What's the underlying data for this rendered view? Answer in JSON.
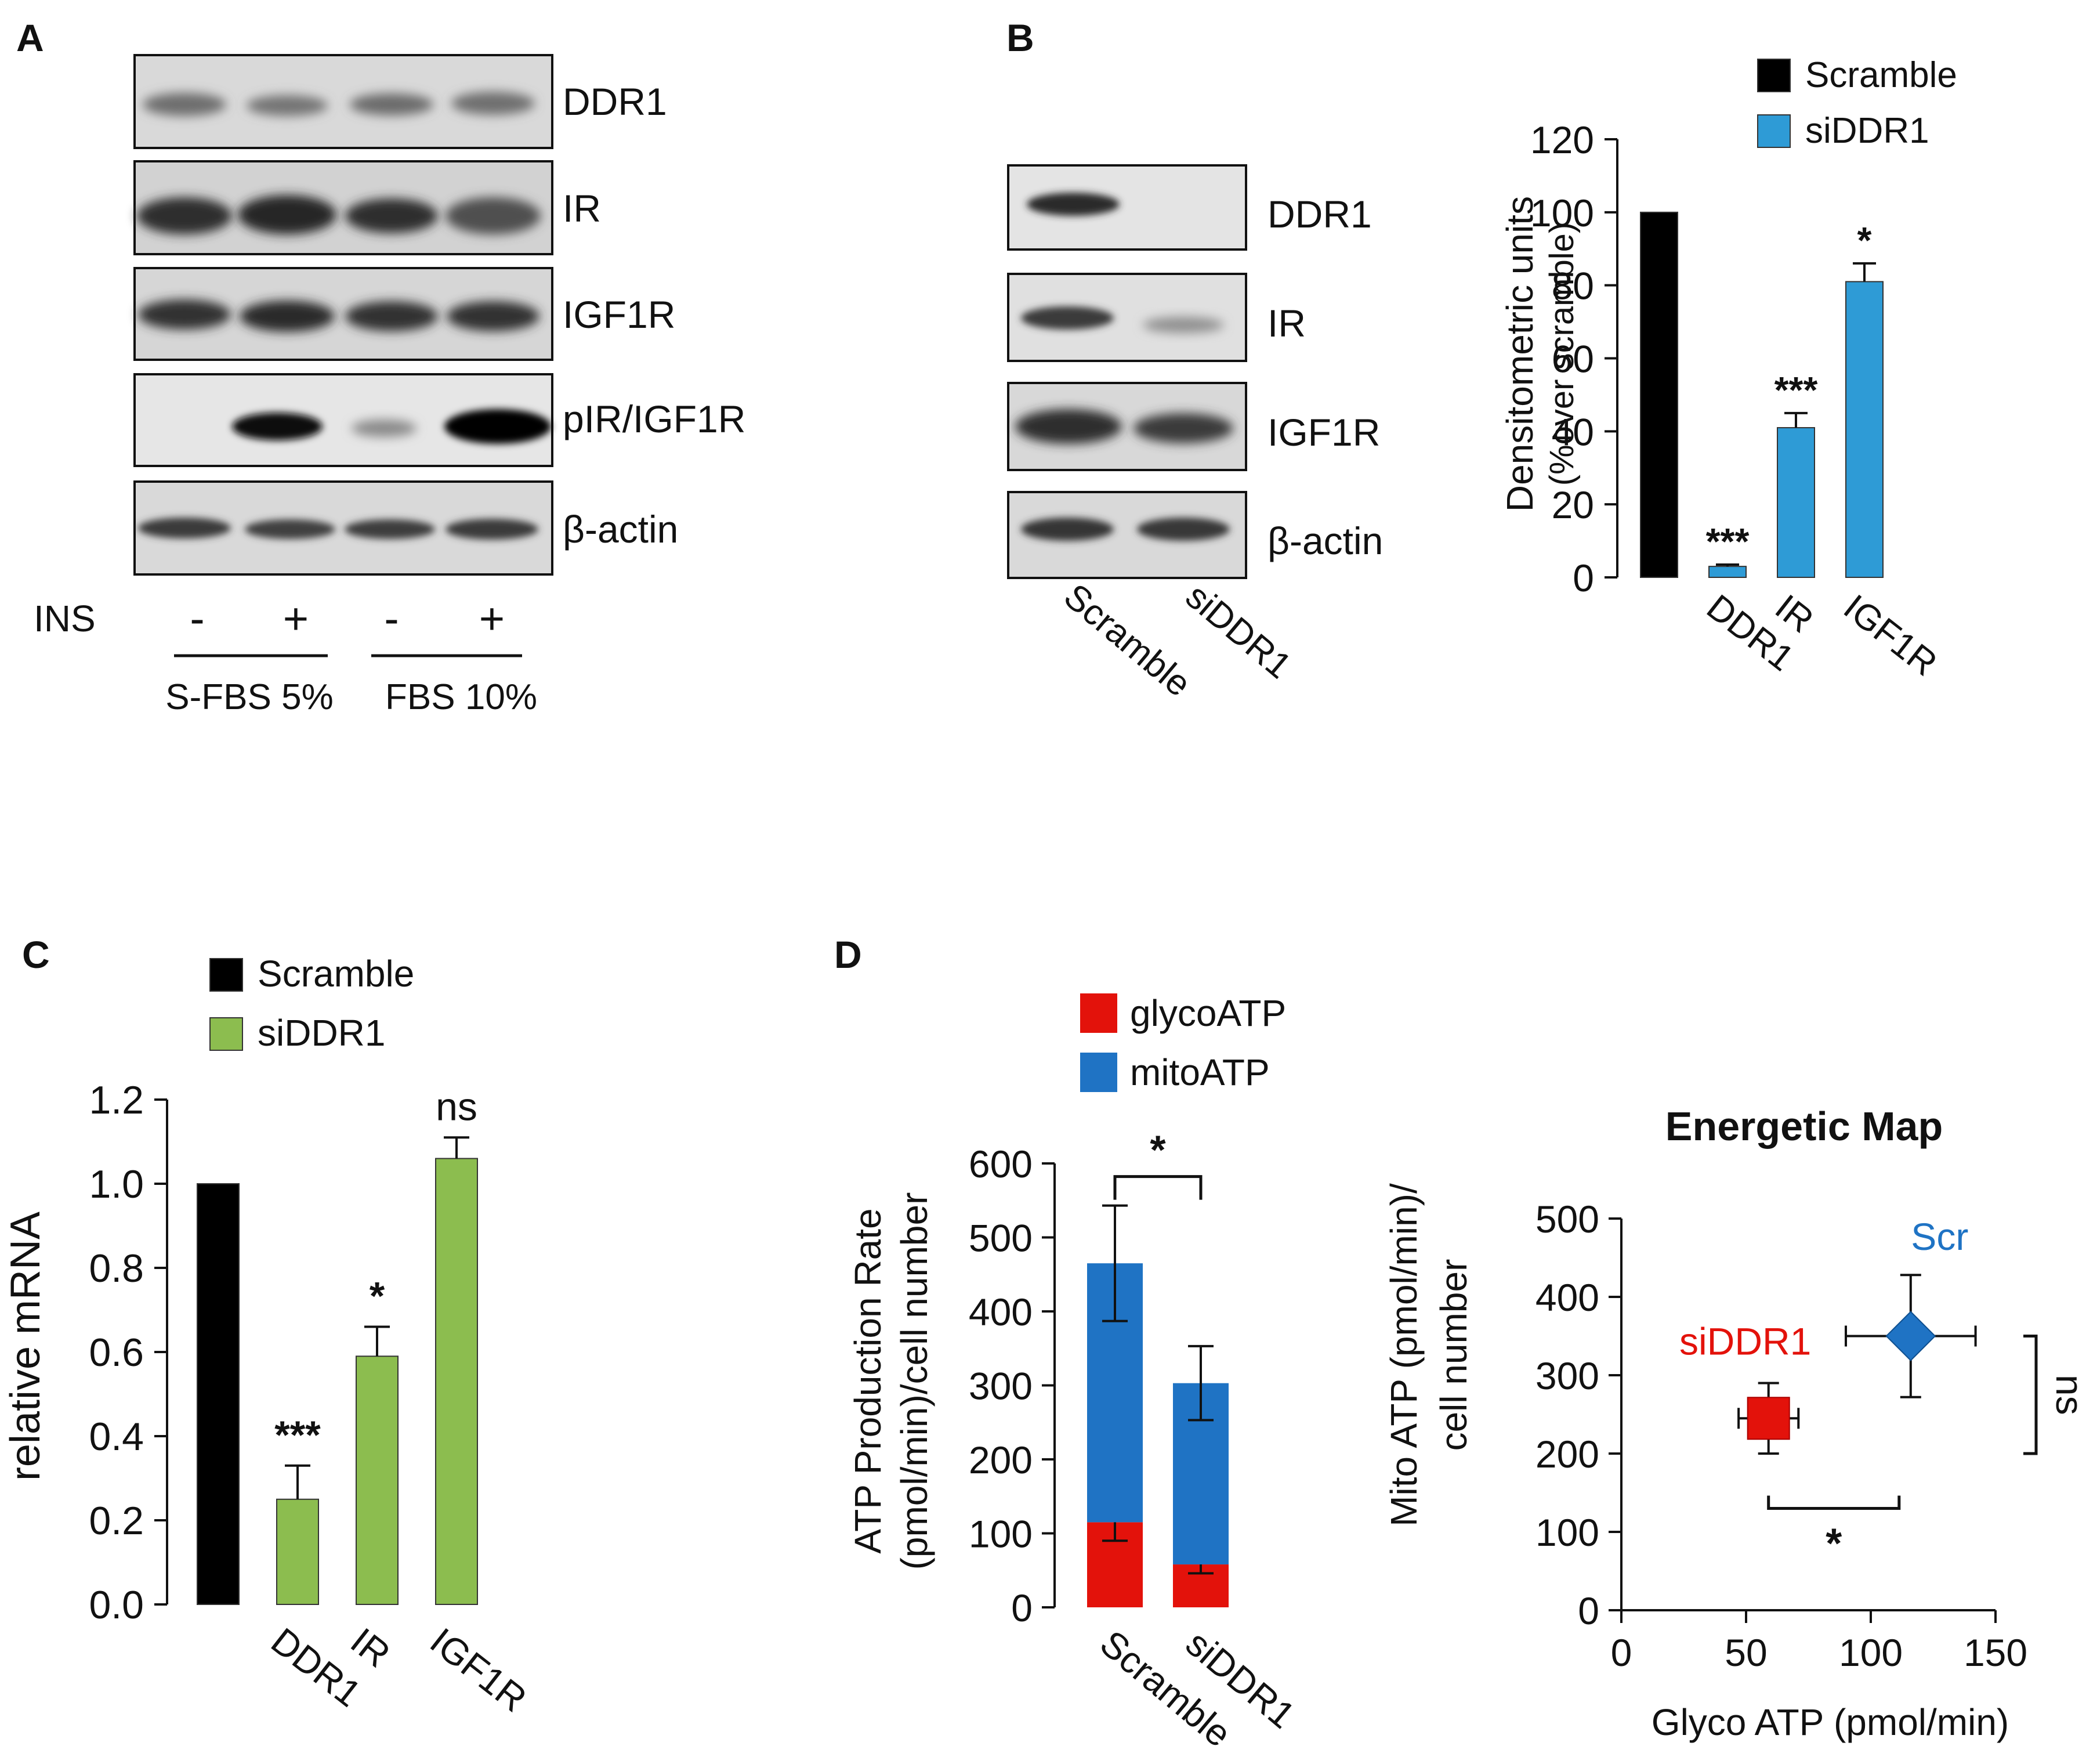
{
  "panels": {
    "A": {
      "letter": "A",
      "blot_labels": [
        "DDR1",
        "IR",
        "IGF1R",
        "pIR/IGF1R",
        "β-actin"
      ],
      "ins_label": "INS",
      "ins_signs": [
        "-",
        "+",
        "-",
        "+"
      ],
      "groups": [
        "S-FBS 5%",
        "FBS 10%"
      ]
    },
    "B": {
      "letter": "B",
      "blot_labels": [
        "DDR1",
        "IR",
        "IGF1R",
        "β-actin"
      ],
      "lane_labels": [
        "Scramble",
        "siDDR1"
      ]
    },
    "C": {
      "letter": "C"
    },
    "D": {
      "letter": "D"
    }
  },
  "chart_data": [
    {
      "id": "B-bar",
      "type": "bar",
      "title": "",
      "ylabel_line1": "Densitometric units",
      "ylabel_line2": "(%over scramble)",
      "ylim": [
        0,
        120
      ],
      "yticks": [
        0,
        20,
        40,
        60,
        80,
        100,
        120
      ],
      "legend": [
        {
          "name": "Scramble",
          "color": "#000000"
        },
        {
          "name": "siDDR1",
          "color": "#2e9bd6"
        }
      ],
      "bars": [
        {
          "category": "",
          "series": "Scramble",
          "value": 100,
          "error": 0,
          "sig": ""
        },
        {
          "category": "DDR1",
          "series": "siDDR1",
          "value": 3,
          "error": 0.5,
          "sig": "***"
        },
        {
          "category": "IR",
          "series": "siDDR1",
          "value": 41,
          "error": 4,
          "sig": "***"
        },
        {
          "category": "IGF1R",
          "series": "siDDR1",
          "value": 81,
          "error": 5,
          "sig": "*"
        }
      ]
    },
    {
      "id": "C-bar",
      "type": "bar",
      "title": "",
      "ylabel": "relative mRNA",
      "ylim": [
        0,
        1.2
      ],
      "yticks": [
        "0.0",
        "0.2",
        "0.4",
        "0.6",
        "0.8",
        "1.0",
        "1.2"
      ],
      "legend": [
        {
          "name": "Scramble",
          "color": "#000000"
        },
        {
          "name": "siDDR1",
          "color": "#8cbd4f"
        }
      ],
      "bars": [
        {
          "category": "",
          "series": "Scramble",
          "value": 1.0,
          "error": 0,
          "sig": ""
        },
        {
          "category": "DDR1",
          "series": "siDDR1",
          "value": 0.25,
          "error": 0.08,
          "sig": "***"
        },
        {
          "category": "IR",
          "series": "siDDR1",
          "value": 0.59,
          "error": 0.07,
          "sig": "*"
        },
        {
          "category": "IGF1R",
          "series": "siDDR1",
          "value": 1.06,
          "error": 0.05,
          "sig": "ns"
        }
      ]
    },
    {
      "id": "D-stacked",
      "type": "bar",
      "stacked": true,
      "title": "",
      "ylabel_line1": "ATP Production Rate",
      "ylabel_line2": "(pmol/min)/cell number",
      "ylim": [
        0,
        600
      ],
      "yticks": [
        0,
        100,
        200,
        300,
        400,
        500,
        600
      ],
      "categories": [
        "Scramble",
        "siDDR1"
      ],
      "series": [
        {
          "name": "glycoATP",
          "color": "#e3120b",
          "values": [
            115,
            58
          ],
          "errors": [
            25,
            12
          ]
        },
        {
          "name": "mitoATP",
          "color": "#1f73c4",
          "values": [
            350,
            245
          ],
          "errors": [
            78,
            50
          ]
        }
      ],
      "sig": "*"
    },
    {
      "id": "D-scatter",
      "type": "scatter",
      "title": "Energetic Map",
      "xlabel": "Glyco ATP (pmol/min)",
      "ylabel_line1": "Mito ATP (pmol/min)/",
      "ylabel_line2": "cell number",
      "xlim": [
        0,
        150
      ],
      "ylim": [
        0,
        500
      ],
      "xticks": [
        0,
        50,
        100,
        150
      ],
      "yticks": [
        0,
        100,
        200,
        300,
        400,
        500
      ],
      "points": [
        {
          "label": "siDDR1",
          "x": 59,
          "y": 245,
          "xerr": 12,
          "yerr": 45,
          "color": "#e3120b",
          "marker": "square"
        },
        {
          "label": "Scr",
          "x": 116,
          "y": 350,
          "xerr": 26,
          "yerr": 78,
          "color": "#1f73c4",
          "marker": "diamond"
        }
      ],
      "sig_x": "*",
      "sig_y": "ns"
    }
  ]
}
